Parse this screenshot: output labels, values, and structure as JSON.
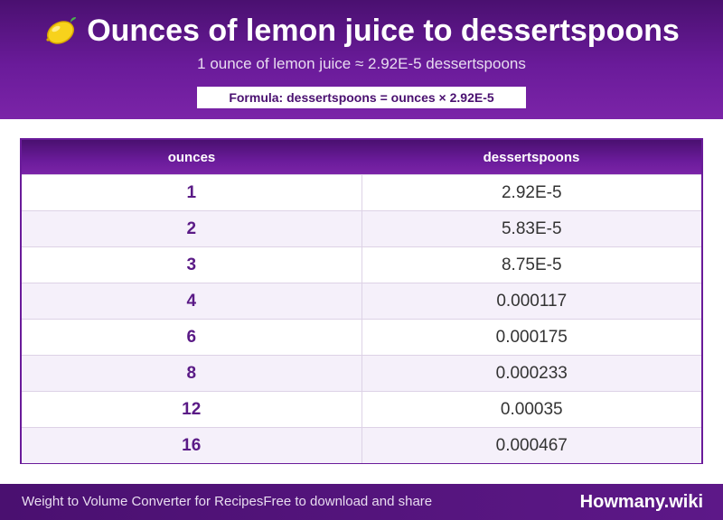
{
  "header": {
    "icon": "lemon-icon",
    "title": "Ounces of lemon juice to dessertspoons",
    "subtitle": "1 ounce of lemon juice ≈ 2.92E-5 dessertspoons",
    "formula": "Formula: dessertspoons = ounces × 2.92E-5"
  },
  "table": {
    "columns": [
      "ounces",
      "dessertspoons"
    ],
    "rows": [
      {
        "ounces": "1",
        "dessertspoons": "2.92E-5"
      },
      {
        "ounces": "2",
        "dessertspoons": "5.83E-5"
      },
      {
        "ounces": "3",
        "dessertspoons": "8.75E-5"
      },
      {
        "ounces": "4",
        "dessertspoons": "0.000117"
      },
      {
        "ounces": "6",
        "dessertspoons": "0.000175"
      },
      {
        "ounces": "8",
        "dessertspoons": "0.000233"
      },
      {
        "ounces": "12",
        "dessertspoons": "0.00035"
      },
      {
        "ounces": "16",
        "dessertspoons": "0.000467"
      }
    ]
  },
  "footer": {
    "text_left": "Weight to Volume Converter for Recipes",
    "text_right": "Free to download and share",
    "brand": "Howmany.wiki"
  },
  "colors": {
    "primary": "#6a1b9a",
    "dark": "#4a1070",
    "row_alt": "#f5f0fa"
  }
}
